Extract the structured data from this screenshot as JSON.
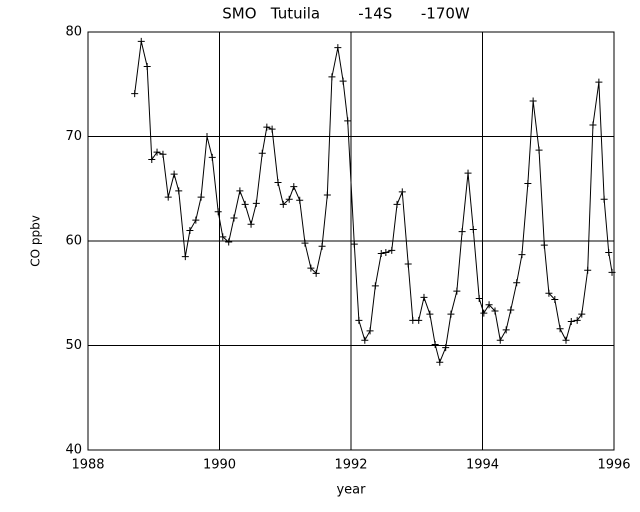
{
  "chart_data": {
    "type": "line",
    "title": "SMO   Tutuila        -14S      -170W",
    "xlabel": "year",
    "ylabel": "CO ppbv",
    "xlim": [
      1988,
      1996
    ],
    "xticks": [
      1988,
      1990,
      1992,
      1994,
      1996
    ],
    "ylim": [
      40,
      80
    ],
    "yticks": [
      40,
      50,
      60,
      70,
      80
    ],
    "grid": true,
    "color": "#000000",
    "marker": "+",
    "x": [
      1988.71,
      1988.81,
      1988.9,
      1988.97,
      1989.05,
      1989.14,
      1989.22,
      1989.31,
      1989.38,
      1989.48,
      1989.55,
      1989.64,
      1989.72,
      1989.81,
      1989.89,
      1989.98,
      1990.05,
      1990.14,
      1990.22,
      1990.31,
      1990.39,
      1990.48,
      1990.56,
      1990.65,
      1990.72,
      1990.8,
      1990.89,
      1990.97,
      1991.06,
      1991.13,
      1991.22,
      1991.3,
      1991.39,
      1991.47,
      1991.56,
      1991.64,
      1991.71,
      1991.8,
      1991.88,
      1991.95,
      1992.05,
      1992.12,
      1992.21,
      1992.29,
      1992.37,
      1992.46,
      1992.53,
      1992.62,
      1992.7,
      1992.78,
      1992.87,
      1992.94,
      1993.03,
      1993.11,
      1993.2,
      1993.28,
      1993.35,
      1993.44,
      1993.52,
      1993.61,
      1993.69,
      1993.78,
      1993.86,
      1993.95,
      1994.02,
      1994.1,
      1994.19,
      1994.27,
      1994.36,
      1994.43,
      1994.52,
      1994.6,
      1994.69,
      1994.77,
      1994.86,
      1994.94,
      1995.01,
      1995.1,
      1995.18,
      1995.27,
      1995.35,
      1995.44,
      1995.51,
      1995.6,
      1995.68,
      1995.77,
      1995.85,
      1995.92,
      1995.97
    ],
    "values": [
      74.1,
      79.1,
      76.7,
      67.8,
      68.5,
      68.3,
      64.2,
      66.4,
      64.8,
      58.5,
      61.0,
      62.0,
      64.2,
      70.0,
      68.0,
      62.8,
      60.4,
      59.9,
      62.2,
      64.8,
      63.5,
      61.6,
      63.6,
      68.4,
      70.9,
      70.7,
      65.6,
      63.5,
      64.0,
      65.2,
      63.9,
      59.8,
      57.4,
      56.9,
      59.5,
      64.4,
      75.7,
      78.5,
      75.3,
      71.5,
      59.7,
      52.4,
      50.5,
      51.4,
      55.7,
      58.8,
      58.9,
      59.1,
      63.5,
      64.7,
      57.8,
      52.4,
      52.4,
      54.6,
      53.0,
      50.1,
      48.4,
      49.8,
      53.0,
      55.2,
      60.9,
      66.5,
      61.1,
      54.5,
      53.1,
      53.9,
      53.3,
      50.5,
      51.5,
      53.4,
      56.0,
      58.7,
      65.5,
      73.4,
      68.7,
      59.6,
      55.0,
      54.4,
      51.6,
      50.5,
      52.3,
      52.4,
      53.0,
      57.2,
      71.1,
      75.2,
      64.0,
      58.9,
      57.0
    ]
  }
}
